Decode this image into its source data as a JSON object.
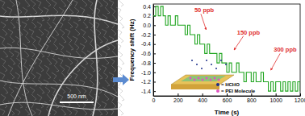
{
  "chart_data": {
    "type": "line",
    "x_label": "Time (s)",
    "y_label": "Frequency shift (Hz)",
    "x": [
      0,
      20,
      40,
      60,
      80,
      100,
      120,
      140,
      160,
      180,
      200,
      220,
      240,
      260,
      280,
      300,
      320,
      340,
      360,
      380,
      400,
      420,
      440,
      460,
      480,
      500,
      520,
      540,
      560,
      580,
      600,
      620,
      640,
      660,
      680,
      700,
      720,
      740,
      760,
      780,
      800,
      820,
      840,
      860,
      880,
      900,
      920,
      940,
      960,
      980,
      1000,
      1020,
      1040,
      1060,
      1080,
      1100,
      1120,
      1140,
      1160,
      1180,
      1200
    ],
    "series": [
      {
        "name": "Frequency shift",
        "color": "#1fa51f",
        "line_style": "step",
        "values": [
          0.2,
          0.4,
          0.2,
          0.4,
          0.2,
          0.0,
          0.2,
          0.0,
          0.0,
          0.2,
          0.0,
          0.0,
          0.0,
          -0.2,
          0.0,
          -0.2,
          -0.2,
          -0.4,
          -0.2,
          -0.4,
          -0.4,
          -0.6,
          -0.4,
          -0.6,
          -0.6,
          -0.6,
          -0.8,
          -0.6,
          -0.8,
          -0.8,
          -1.0,
          -0.8,
          -1.0,
          -1.0,
          -0.8,
          -1.0,
          -1.0,
          -1.2,
          -1.0,
          -1.0,
          -1.2,
          -1.0,
          -1.2,
          -1.2,
          -1.0,
          -1.2,
          -1.2,
          -1.4,
          -1.2,
          -1.4,
          -1.2,
          -1.2,
          -1.4,
          -1.2,
          -1.4,
          -1.2,
          -1.4,
          -1.2,
          -1.4,
          -1.2,
          -1.4
        ]
      }
    ],
    "xlim": [
      0,
      1200
    ],
    "xticks": [
      0,
      200,
      400,
      600,
      800,
      1000,
      1200
    ],
    "ylim": [
      -1.5,
      0.45
    ],
    "yticks": [
      0.4,
      0.2,
      {
        "value": 0,
        "label": "0.0"
      },
      -0.2,
      -0.4,
      -0.6,
      -0.8,
      {
        "value": -1,
        "label": "-1.0"
      },
      -1.2,
      -1.4
    ],
    "annotations": [
      {
        "text": "50 ppb"
      },
      {
        "text": "150 ppb"
      },
      {
        "text": "300 ppb"
      }
    ],
    "inset_legend": [
      "= HCHO",
      "= PEI Molecule"
    ]
  },
  "image": {
    "scale_bar": "500 nm"
  }
}
